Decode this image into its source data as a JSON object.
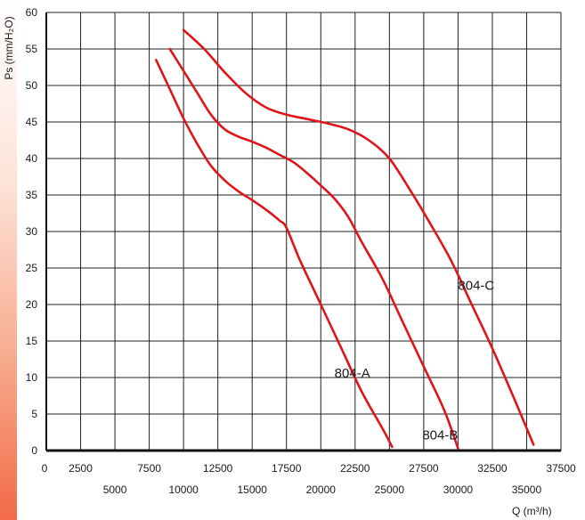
{
  "chart_data": {
    "type": "line",
    "title": "",
    "xlabel": "Q (m³/h)",
    "ylabel": "Ps (mm/H₂O)",
    "xlim": [
      0,
      37500
    ],
    "ylim": [
      0,
      60
    ],
    "x_ticks": [
      0,
      2500,
      5000,
      7500,
      10000,
      12500,
      15000,
      17500,
      20000,
      22500,
      25000,
      27500,
      30000,
      32500,
      35000,
      37500
    ],
    "y_ticks": [
      0,
      5,
      10,
      15,
      20,
      25,
      30,
      35,
      40,
      45,
      50,
      55,
      60
    ],
    "grid": true,
    "line_color": "#e0141b",
    "series": [
      {
        "name": "804-A",
        "x": [
          8000,
          9000,
          10000,
          11000,
          12000,
          13000,
          14000,
          15000,
          16000,
          17000,
          17500,
          18500,
          20000,
          21500,
          23000,
          24500,
          25200
        ],
        "y": [
          53.5,
          49.5,
          45.5,
          42,
          39,
          37,
          35.5,
          34.3,
          33,
          31.5,
          30.5,
          26,
          20,
          14,
          8,
          3,
          0.5
        ]
      },
      {
        "name": "804-B",
        "x": [
          9000,
          10000,
          11000,
          12000,
          13000,
          14000,
          15000,
          16000,
          17000,
          18000,
          19000,
          20000,
          21000,
          22000,
          23000,
          24500,
          26000,
          27500,
          29000,
          30000
        ],
        "y": [
          55,
          52,
          49,
          46,
          44,
          43,
          42.3,
          41.5,
          40.5,
          39.5,
          38,
          36.3,
          34.5,
          32,
          28.5,
          23.5,
          17.5,
          11.5,
          5.5,
          0.3
        ]
      },
      {
        "name": "804-C",
        "x": [
          10000,
          11500,
          13000,
          14500,
          16000,
          17500,
          19000,
          20500,
          22000,
          23500,
          25000,
          26500,
          28000,
          29500,
          31000,
          32500,
          34000,
          35500
        ],
        "y": [
          57.6,
          55,
          51.8,
          49,
          47,
          46,
          45.4,
          44.8,
          44,
          42.5,
          40,
          35.7,
          31,
          26,
          20,
          14,
          7.5,
          0.8
        ]
      }
    ],
    "annotations": [
      {
        "text": "804-A",
        "x": 21000,
        "y": 10
      },
      {
        "text": "804-B",
        "x": 27400,
        "y": 1.5
      },
      {
        "text": "804-C",
        "x": 30000,
        "y": 22
      }
    ]
  }
}
